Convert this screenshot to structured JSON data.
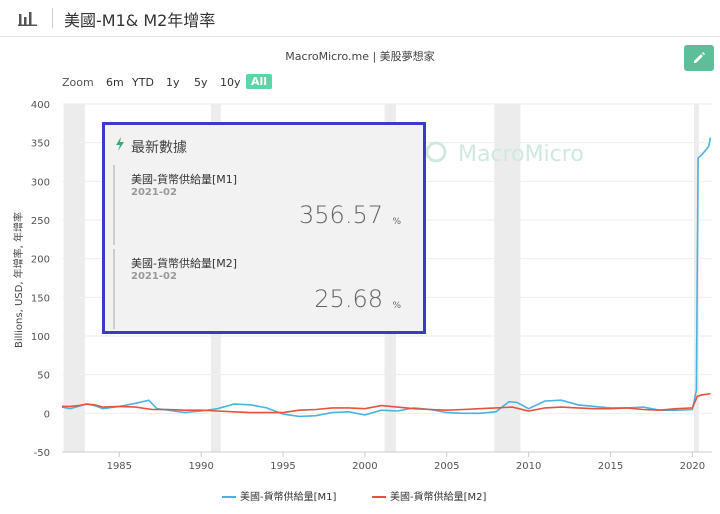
{
  "header": {
    "title": "美國-M1& M2年增率"
  },
  "source_label": "MacroMicro.me | 美股夢想家",
  "watermark": "MacroMicro",
  "zoom": {
    "label": "Zoom",
    "options": [
      "6m",
      "YTD",
      "1y",
      "5y",
      "10y",
      "All"
    ],
    "active": "All"
  },
  "latest": {
    "title": "最新數據",
    "items": [
      {
        "name": "美國-貨幣供給量[M1]",
        "date": "2021-02",
        "value": "356.57",
        "unit": "%"
      },
      {
        "name": "美國-貨幣供給量[M2]",
        "date": "2021-02",
        "value": "25.68",
        "unit": "%"
      }
    ]
  },
  "colors": {
    "m1": "#4ab3e0",
    "m2": "#e5533d",
    "accent": "#5fd4a6",
    "panel_border": "#3b3bc8"
  },
  "chart_data": {
    "type": "line",
    "ylabel": "Billions, USD, 年增率, 年增率",
    "ylim": [
      -50,
      400
    ],
    "yticks": [
      -50,
      0,
      50,
      100,
      150,
      200,
      250,
      300,
      350,
      400
    ],
    "xlim": [
      1981.5,
      2021.2
    ],
    "xticks": [
      1985,
      1990,
      1995,
      2000,
      2005,
      2010,
      2015,
      2020
    ],
    "recessions": [
      [
        1981.6,
        1982.9
      ],
      [
        1990.6,
        1991.2
      ],
      [
        2001.2,
        2001.9
      ],
      [
        2007.9,
        2009.5
      ],
      [
        2020.1,
        2020.4
      ]
    ],
    "series": [
      {
        "name": "美國-貨幣供給量[M1]",
        "points": [
          [
            1981.5,
            8
          ],
          [
            1982,
            6
          ],
          [
            1982.5,
            9
          ],
          [
            1983,
            12
          ],
          [
            1983.5,
            10
          ],
          [
            1984,
            6
          ],
          [
            1985,
            9
          ],
          [
            1986,
            13
          ],
          [
            1986.8,
            17
          ],
          [
            1987.3,
            6
          ],
          [
            1988,
            4
          ],
          [
            1989,
            1
          ],
          [
            1990,
            3
          ],
          [
            1991,
            6
          ],
          [
            1992,
            12
          ],
          [
            1993,
            11
          ],
          [
            1994,
            7
          ],
          [
            1995,
            -1
          ],
          [
            1996,
            -4
          ],
          [
            1997,
            -3
          ],
          [
            1998,
            1
          ],
          [
            1999,
            2
          ],
          [
            2000,
            -2
          ],
          [
            2001,
            4
          ],
          [
            2002,
            3
          ],
          [
            2003,
            7
          ],
          [
            2004,
            5
          ],
          [
            2005,
            1
          ],
          [
            2006,
            0
          ],
          [
            2007,
            0
          ],
          [
            2008,
            2
          ],
          [
            2008.8,
            15
          ],
          [
            2009.3,
            14
          ],
          [
            2010,
            6
          ],
          [
            2011,
            16
          ],
          [
            2012,
            17
          ],
          [
            2013,
            11
          ],
          [
            2014,
            9
          ],
          [
            2015,
            7
          ],
          [
            2016,
            7
          ],
          [
            2017,
            8
          ],
          [
            2018,
            4
          ],
          [
            2019,
            4
          ],
          [
            2020,
            5
          ],
          [
            2020.25,
            30
          ],
          [
            2020.35,
            330
          ],
          [
            2020.6,
            335
          ],
          [
            2021,
            345
          ],
          [
            2021.1,
            356.57
          ]
        ]
      },
      {
        "name": "美國-貨幣供給量[M2]",
        "points": [
          [
            1981.5,
            9
          ],
          [
            1982,
            9
          ],
          [
            1982.5,
            10
          ],
          [
            1983,
            12
          ],
          [
            1983.5,
            11
          ],
          [
            1984,
            8
          ],
          [
            1985,
            9
          ],
          [
            1986,
            8
          ],
          [
            1987,
            5
          ],
          [
            1988,
            5
          ],
          [
            1989,
            4
          ],
          [
            1990,
            4
          ],
          [
            1991,
            3
          ],
          [
            1992,
            2
          ],
          [
            1993,
            1
          ],
          [
            1994,
            1
          ],
          [
            1995,
            1
          ],
          [
            1996,
            4
          ],
          [
            1997,
            5
          ],
          [
            1998,
            7
          ],
          [
            1999,
            7
          ],
          [
            2000,
            6
          ],
          [
            2001,
            10
          ],
          [
            2002,
            8
          ],
          [
            2003,
            6
          ],
          [
            2004,
            5
          ],
          [
            2005,
            4
          ],
          [
            2006,
            5
          ],
          [
            2007,
            6
          ],
          [
            2008,
            7
          ],
          [
            2009,
            8
          ],
          [
            2010,
            3
          ],
          [
            2011,
            7
          ],
          [
            2012,
            8
          ],
          [
            2013,
            7
          ],
          [
            2014,
            6
          ],
          [
            2015,
            6
          ],
          [
            2016,
            7
          ],
          [
            2017,
            5
          ],
          [
            2018,
            4
          ],
          [
            2019,
            6
          ],
          [
            2020,
            7
          ],
          [
            2020.3,
            22
          ],
          [
            2020.6,
            24
          ],
          [
            2021,
            25
          ],
          [
            2021.1,
            25.68
          ]
        ]
      }
    ]
  }
}
